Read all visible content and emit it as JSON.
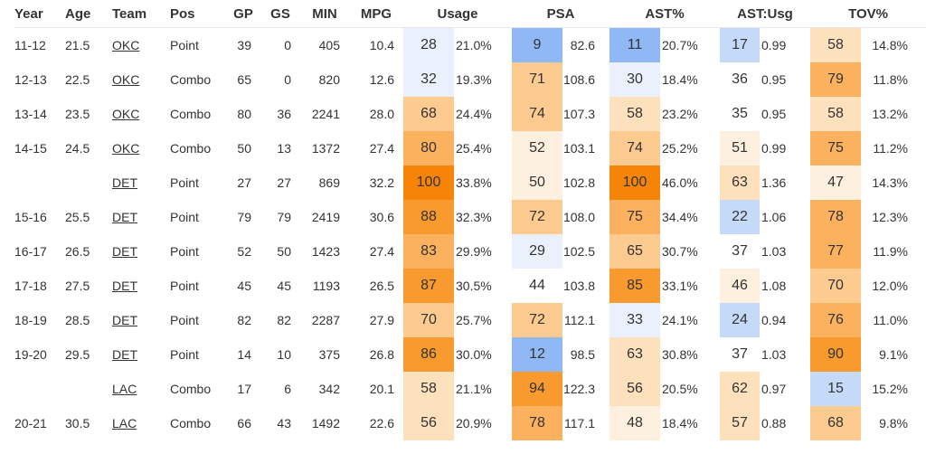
{
  "headers": {
    "year": "Year",
    "age": "Age",
    "team": "Team",
    "pos": "Pos",
    "gp": "GP",
    "gs": "GS",
    "min": "MIN",
    "mpg": "MPG",
    "usage": "Usage",
    "psa": "PSA",
    "ast_pct": "AST%",
    "ast_usg": "AST:Usg",
    "tov": "TOV%"
  },
  "colors": {
    "scale": [
      "#5590ee",
      "#8fb8f4",
      "#c5daf9",
      "#eaf1fc",
      "#ffffff",
      "#fdf0de",
      "#fde1bd",
      "#fdcb8f",
      "#fbb15e",
      "#f89a2e",
      "#f68408"
    ]
  },
  "rows": [
    {
      "year": "11-12",
      "age": "21.5",
      "team": "OKC",
      "pos": "Point",
      "gp": "39",
      "gs": "0",
      "min": "405",
      "mpg": "10.4",
      "usage_rank": "28",
      "usage_val": "21.0%",
      "psa_rank": "9",
      "psa_val": "82.6",
      "ast_rank": "11",
      "ast_val": "20.7%",
      "astusg_rank": "17",
      "astusg_val": "0.99",
      "tov_rank": "58",
      "tov_val": "14.8%"
    },
    {
      "year": "12-13",
      "age": "22.5",
      "team": "OKC",
      "pos": "Combo",
      "gp": "65",
      "gs": "0",
      "min": "820",
      "mpg": "12.6",
      "usage_rank": "32",
      "usage_val": "19.3%",
      "psa_rank": "71",
      "psa_val": "108.6",
      "ast_rank": "30",
      "ast_val": "18.4%",
      "astusg_rank": "36",
      "astusg_val": "0.95",
      "tov_rank": "79",
      "tov_val": "11.8%"
    },
    {
      "year": "13-14",
      "age": "23.5",
      "team": "OKC",
      "pos": "Combo",
      "gp": "80",
      "gs": "36",
      "min": "2241",
      "mpg": "28.0",
      "usage_rank": "68",
      "usage_val": "24.4%",
      "psa_rank": "74",
      "psa_val": "107.3",
      "ast_rank": "58",
      "ast_val": "23.2%",
      "astusg_rank": "35",
      "astusg_val": "0.95",
      "tov_rank": "58",
      "tov_val": "13.2%"
    },
    {
      "year": "14-15",
      "age": "24.5",
      "team": "OKC",
      "pos": "Combo",
      "gp": "50",
      "gs": "13",
      "min": "1372",
      "mpg": "27.4",
      "usage_rank": "80",
      "usage_val": "25.4%",
      "psa_rank": "52",
      "psa_val": "103.1",
      "ast_rank": "74",
      "ast_val": "25.2%",
      "astusg_rank": "51",
      "astusg_val": "0.99",
      "tov_rank": "75",
      "tov_val": "11.2%"
    },
    {
      "year": "",
      "age": "",
      "team": "DET",
      "pos": "Point",
      "gp": "27",
      "gs": "27",
      "min": "869",
      "mpg": "32.2",
      "usage_rank": "100",
      "usage_val": "33.8%",
      "psa_rank": "50",
      "psa_val": "102.8",
      "ast_rank": "100",
      "ast_val": "46.0%",
      "astusg_rank": "63",
      "astusg_val": "1.36",
      "tov_rank": "47",
      "tov_val": "14.3%"
    },
    {
      "year": "15-16",
      "age": "25.5",
      "team": "DET",
      "pos": "Point",
      "gp": "79",
      "gs": "79",
      "min": "2419",
      "mpg": "30.6",
      "usage_rank": "88",
      "usage_val": "32.3%",
      "psa_rank": "72",
      "psa_val": "108.0",
      "ast_rank": "75",
      "ast_val": "34.4%",
      "astusg_rank": "22",
      "astusg_val": "1.06",
      "tov_rank": "78",
      "tov_val": "12.3%"
    },
    {
      "year": "16-17",
      "age": "26.5",
      "team": "DET",
      "pos": "Point",
      "gp": "52",
      "gs": "50",
      "min": "1423",
      "mpg": "27.4",
      "usage_rank": "83",
      "usage_val": "29.9%",
      "psa_rank": "29",
      "psa_val": "102.5",
      "ast_rank": "65",
      "ast_val": "30.7%",
      "astusg_rank": "37",
      "astusg_val": "1.03",
      "tov_rank": "77",
      "tov_val": "11.9%"
    },
    {
      "year": "17-18",
      "age": "27.5",
      "team": "DET",
      "pos": "Point",
      "gp": "45",
      "gs": "45",
      "min": "1193",
      "mpg": "26.5",
      "usage_rank": "87",
      "usage_val": "30.5%",
      "psa_rank": "44",
      "psa_val": "103.8",
      "ast_rank": "85",
      "ast_val": "33.1%",
      "astusg_rank": "46",
      "astusg_val": "1.08",
      "tov_rank": "70",
      "tov_val": "12.0%"
    },
    {
      "year": "18-19",
      "age": "28.5",
      "team": "DET",
      "pos": "Point",
      "gp": "82",
      "gs": "82",
      "min": "2287",
      "mpg": "27.9",
      "usage_rank": "70",
      "usage_val": "25.7%",
      "psa_rank": "72",
      "psa_val": "112.1",
      "ast_rank": "33",
      "ast_val": "24.1%",
      "astusg_rank": "24",
      "astusg_val": "0.94",
      "tov_rank": "76",
      "tov_val": "11.0%"
    },
    {
      "year": "19-20",
      "age": "29.5",
      "team": "DET",
      "pos": "Point",
      "gp": "14",
      "gs": "10",
      "min": "375",
      "mpg": "26.8",
      "usage_rank": "86",
      "usage_val": "30.0%",
      "psa_rank": "12",
      "psa_val": "98.5",
      "ast_rank": "63",
      "ast_val": "30.8%",
      "astusg_rank": "37",
      "astusg_val": "1.03",
      "tov_rank": "90",
      "tov_val": "9.1%"
    },
    {
      "year": "",
      "age": "",
      "team": "LAC",
      "pos": "Combo",
      "gp": "17",
      "gs": "6",
      "min": "342",
      "mpg": "20.1",
      "usage_rank": "58",
      "usage_val": "21.1%",
      "psa_rank": "94",
      "psa_val": "122.3",
      "ast_rank": "56",
      "ast_val": "20.5%",
      "astusg_rank": "62",
      "astusg_val": "0.97",
      "tov_rank": "15",
      "tov_val": "15.2%"
    },
    {
      "year": "20-21",
      "age": "30.5",
      "team": "LAC",
      "pos": "Combo",
      "gp": "66",
      "gs": "43",
      "min": "1492",
      "mpg": "22.6",
      "usage_rank": "56",
      "usage_val": "20.9%",
      "psa_rank": "78",
      "psa_val": "117.1",
      "ast_rank": "48",
      "ast_val": "18.4%",
      "astusg_rank": "57",
      "astusg_val": "0.88",
      "tov_rank": "68",
      "tov_val": "9.8%"
    }
  ]
}
